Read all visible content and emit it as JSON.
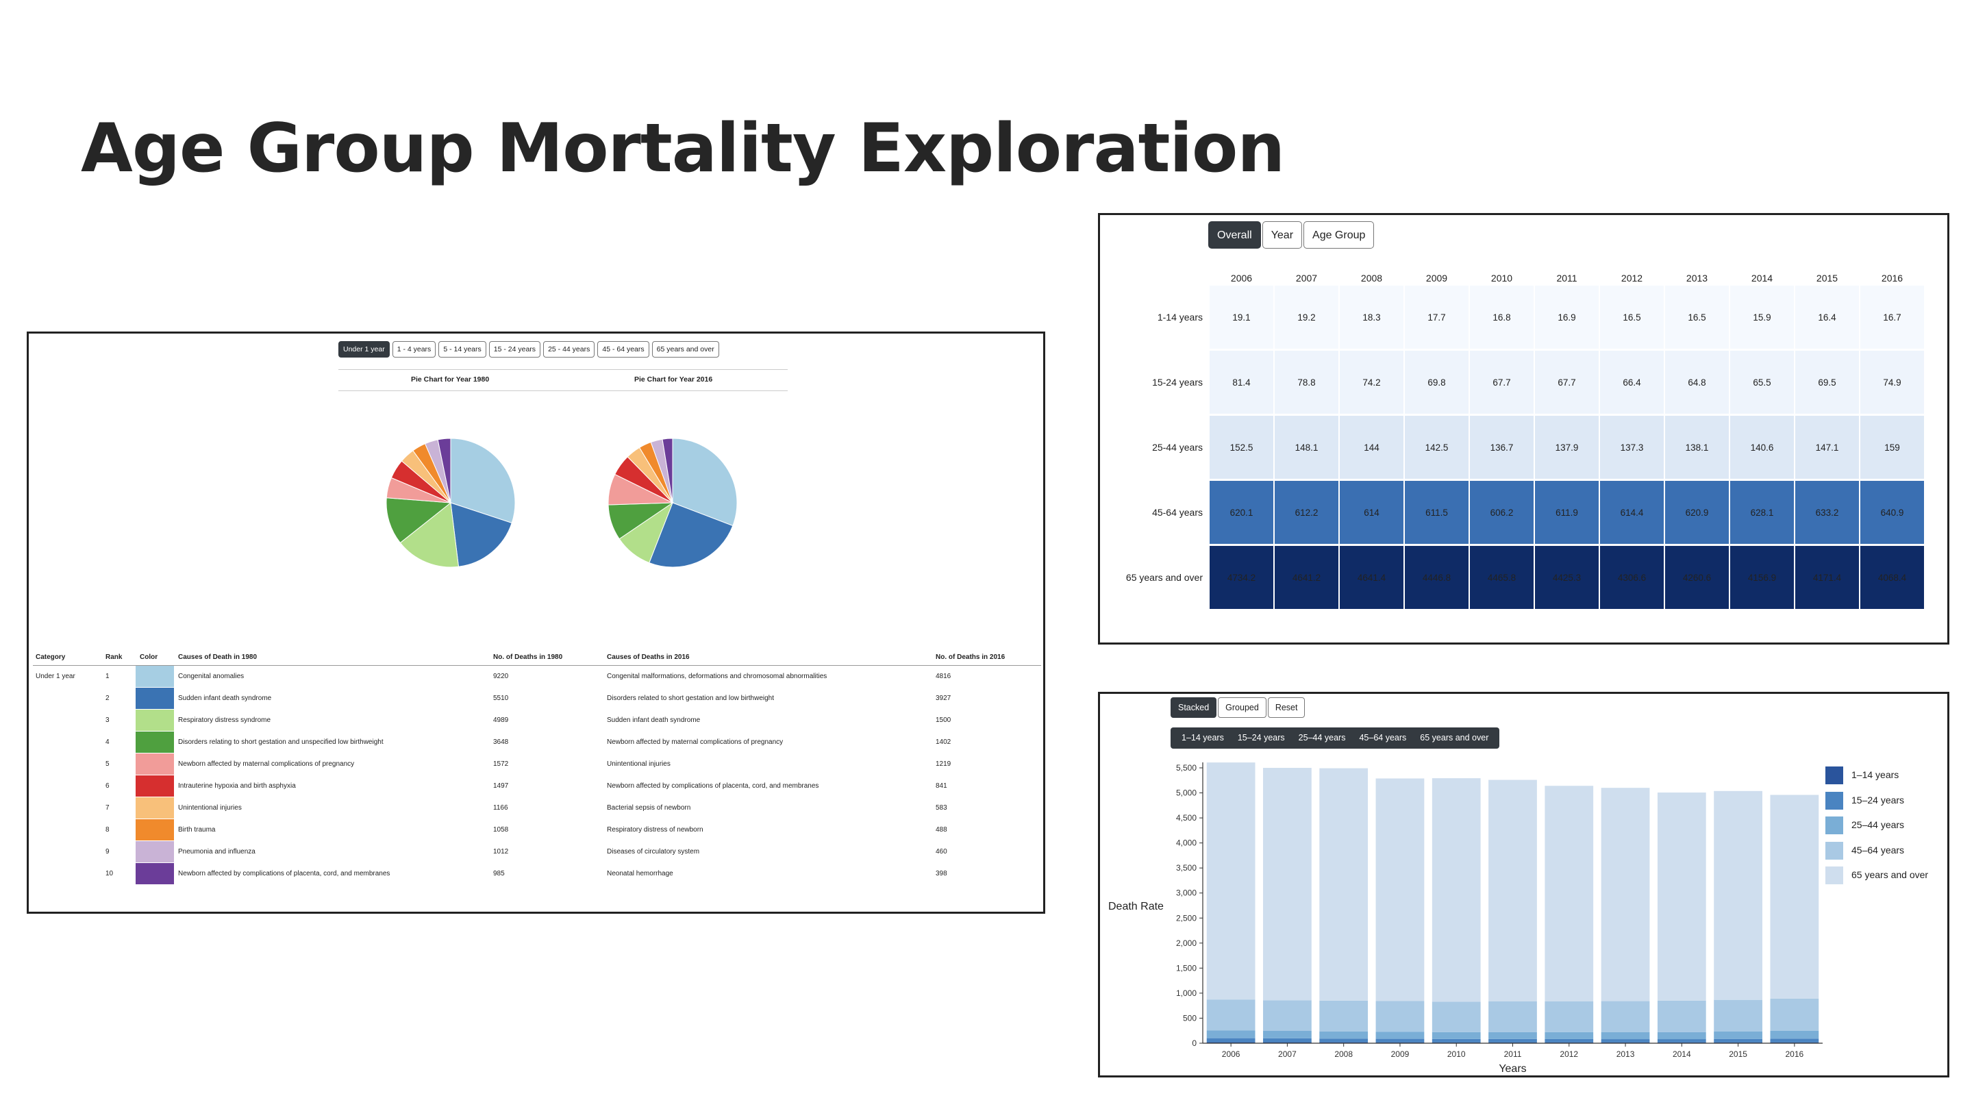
{
  "page": {
    "title": "Age Group Mortality Exploration"
  },
  "pie_panel": {
    "tabs": [
      "Under 1 year",
      "1 - 4 years",
      "5 - 14 years",
      "15 - 24 years",
      "25 - 44 years",
      "45 - 64 years",
      "65 years and over"
    ],
    "active_tab": 0,
    "pie_titles": [
      "Pie Chart for Year 1980",
      "Pie Chart for Year 2016"
    ],
    "table": {
      "headers": [
        "Category",
        "Rank",
        "Color",
        "Causes of Death in 1980",
        "No. of Deaths in 1980",
        "Causes of Deaths in 2016",
        "No. of Deaths in 2016"
      ],
      "category": "Under 1 year",
      "rows": [
        {
          "rank": "1",
          "color": "#a6cee3",
          "cause_1980": "Congenital anomalies",
          "deaths_1980": "9220",
          "cause_2016": "Congenital malformations, deformations and chromosomal abnormalities",
          "deaths_2016": "4816"
        },
        {
          "rank": "2",
          "color": "#3a73b3",
          "cause_1980": "Sudden infant death syndrome",
          "deaths_1980": "5510",
          "cause_2016": "Disorders related to short gestation and low birthweight",
          "deaths_2016": "3927"
        },
        {
          "rank": "3",
          "color": "#b2df8a",
          "cause_1980": "Respiratory distress syndrome",
          "deaths_1980": "4989",
          "cause_2016": "Sudden infant death syndrome",
          "deaths_2016": "1500"
        },
        {
          "rank": "4",
          "color": "#4fa03f",
          "cause_1980": "Disorders relating to short gestation and unspecified low birthweight",
          "deaths_1980": "3648",
          "cause_2016": "Newborn affected by maternal complications of pregnancy",
          "deaths_2016": "1402"
        },
        {
          "rank": "5",
          "color": "#f19c99",
          "cause_1980": "Newborn affected by maternal complications of pregnancy",
          "deaths_1980": "1572",
          "cause_2016": "Unintentional injuries",
          "deaths_2016": "1219"
        },
        {
          "rank": "6",
          "color": "#d62f2f",
          "cause_1980": "Intrauterine hypoxia and birth asphyxia",
          "deaths_1980": "1497",
          "cause_2016": "Newborn affected by complications of placenta, cord, and membranes",
          "deaths_2016": "841"
        },
        {
          "rank": "7",
          "color": "#f8c07a",
          "cause_1980": "Unintentional injuries",
          "deaths_1980": "1166",
          "cause_2016": "Bacterial sepsis of newborn",
          "deaths_2016": "583"
        },
        {
          "rank": "8",
          "color": "#f08a2c",
          "cause_1980": "Birth trauma",
          "deaths_1980": "1058",
          "cause_2016": "Respiratory distress of newborn",
          "deaths_2016": "488"
        },
        {
          "rank": "9",
          "color": "#c9b3d6",
          "cause_1980": "Pneumonia and influenza",
          "deaths_1980": "1012",
          "cause_2016": "Diseases of circulatory system",
          "deaths_2016": "460"
        },
        {
          "rank": "10",
          "color": "#6b3d99",
          "cause_1980": "Newborn affected by complications of placenta, cord, and membranes",
          "deaths_1980": "985",
          "cause_2016": "Neonatal hemorrhage",
          "deaths_2016": "398"
        }
      ]
    }
  },
  "heatmap_panel": {
    "tabs": [
      "Overall",
      "Year",
      "Age Group"
    ],
    "active_tab": 0
  },
  "bar_panel": {
    "tabs": [
      "Stacked",
      "Grouped",
      "Reset"
    ],
    "active_tab": 0,
    "series_buttons": [
      "1–14 years",
      "15–24 years",
      "25–44 years",
      "45–64 years",
      "65 years and over"
    ]
  },
  "chart_data": [
    {
      "type": "pie",
      "title": "Pie Chart for Year 1980",
      "labels": [
        "Congenital anomalies",
        "Sudden infant death syndrome",
        "Respiratory distress syndrome",
        "Disorders relating to short gestation and unspecified low birthweight",
        "Newborn affected by maternal complications of pregnancy",
        "Intrauterine hypoxia and birth asphyxia",
        "Unintentional injuries",
        "Birth trauma",
        "Pneumonia and influenza",
        "Newborn affected by complications of placenta, cord, and membranes"
      ],
      "values": [
        9220,
        5510,
        4989,
        3648,
        1572,
        1497,
        1166,
        1058,
        1012,
        985
      ],
      "colors": [
        "#a6cee3",
        "#3a73b3",
        "#b2df8a",
        "#4fa03f",
        "#f19c99",
        "#d62f2f",
        "#f8c07a",
        "#f08a2c",
        "#c9b3d6",
        "#6b3d99"
      ]
    },
    {
      "type": "pie",
      "title": "Pie Chart for Year 2016",
      "labels": [
        "Congenital malformations, deformations and chromosomal abnormalities",
        "Disorders related to short gestation and low birthweight",
        "Sudden infant death syndrome",
        "Newborn affected by maternal complications of pregnancy",
        "Unintentional injuries",
        "Newborn affected by complications of placenta, cord, and membranes",
        "Bacterial sepsis of newborn",
        "Respiratory distress of newborn",
        "Diseases of circulatory system",
        "Neonatal hemorrhage"
      ],
      "values": [
        4816,
        3927,
        1500,
        1402,
        1219,
        841,
        583,
        488,
        460,
        398
      ],
      "colors": [
        "#a6cee3",
        "#3a73b3",
        "#b2df8a",
        "#4fa03f",
        "#f19c99",
        "#d62f2f",
        "#f8c07a",
        "#f08a2c",
        "#c9b3d6",
        "#6b3d99"
      ]
    },
    {
      "type": "heatmap",
      "x": [
        "2006",
        "2007",
        "2008",
        "2009",
        "2010",
        "2011",
        "2012",
        "2013",
        "2014",
        "2015",
        "2016"
      ],
      "y": [
        "1-14 years",
        "15-24 years",
        "25-44 years",
        "45-64 years",
        "65 years and over"
      ],
      "values": [
        [
          19.1,
          19.2,
          18.3,
          17.7,
          16.8,
          16.9,
          16.5,
          16.5,
          15.9,
          16.4,
          16.7
        ],
        [
          81.4,
          78.8,
          74.2,
          69.8,
          67.7,
          67.7,
          66.4,
          64.8,
          65.5,
          69.5,
          74.9
        ],
        [
          152.5,
          148.1,
          144,
          142.5,
          136.7,
          137.9,
          137.3,
          138.1,
          140.6,
          147.1,
          159
        ],
        [
          620.1,
          612.2,
          614,
          611.5,
          606.2,
          611.9,
          614.4,
          620.9,
          628.1,
          633.2,
          640.9
        ],
        [
          4734.2,
          4641.2,
          4641.4,
          4446.8,
          4465.8,
          4425.3,
          4306.6,
          4260.6,
          4156.9,
          4171.4,
          4068.4
        ]
      ],
      "colors": [
        "#f5f9fe",
        "#eef4fc",
        "#dde8f5",
        "#3a6fb2",
        "#0f2b66"
      ]
    },
    {
      "type": "bar",
      "stacked": true,
      "xlabel": "Years",
      "ylabel": "Death Rate",
      "ylim": [
        0,
        5500
      ],
      "yticks": [
        "0",
        "500",
        "1,000",
        "1,500",
        "2,000",
        "2,500",
        "3,000",
        "3,500",
        "4,000",
        "4,500",
        "5,000",
        "5,500"
      ],
      "categories": [
        "2006",
        "2007",
        "2008",
        "2009",
        "2010",
        "2011",
        "2012",
        "2013",
        "2014",
        "2015",
        "2016"
      ],
      "legend_position": "right",
      "series": [
        {
          "name": "1–14 years",
          "color": "#2a549c",
          "values": [
            19.1,
            19.2,
            18.3,
            17.7,
            16.8,
            16.9,
            16.5,
            16.5,
            15.9,
            16.4,
            16.7
          ]
        },
        {
          "name": "15–24 years",
          "color": "#4a84c1",
          "values": [
            81.4,
            78.8,
            74.2,
            69.8,
            67.7,
            67.7,
            66.4,
            64.8,
            65.5,
            69.5,
            74.9
          ]
        },
        {
          "name": "25–44 years",
          "color": "#7aaed6",
          "values": [
            152.5,
            148.1,
            144,
            142.5,
            136.7,
            137.9,
            137.3,
            138.1,
            140.6,
            147.1,
            159
          ]
        },
        {
          "name": "45–64 years",
          "color": "#a9c9e4",
          "values": [
            620.1,
            612.2,
            614,
            611.5,
            606.2,
            611.9,
            614.4,
            620.9,
            628.1,
            633.2,
            640.9
          ]
        },
        {
          "name": "65 years and over",
          "color": "#cfdeee",
          "values": [
            4734.2,
            4641.2,
            4641.4,
            4446.8,
            4465.8,
            4425.3,
            4306.6,
            4260.6,
            4156.9,
            4171.4,
            4068.4
          ]
        }
      ]
    }
  ]
}
